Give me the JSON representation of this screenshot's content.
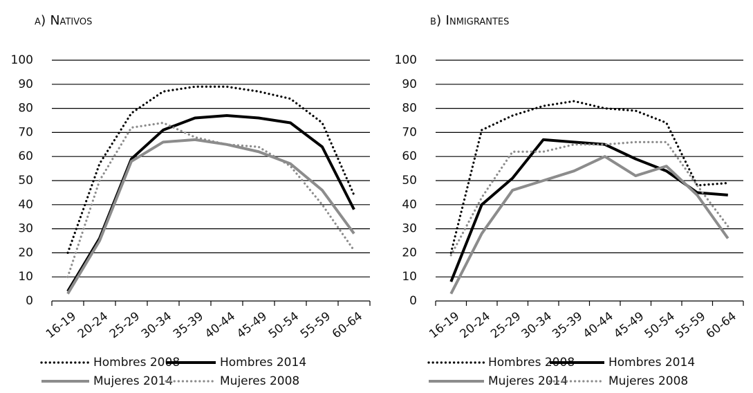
{
  "chart_data": [
    {
      "type": "line",
      "title": "a) Nativos",
      "categories": [
        "16-19",
        "20-24",
        "25-29",
        "30-34",
        "35-39",
        "40-44",
        "45-49",
        "50-54",
        "55-59",
        "60-64"
      ],
      "series": [
        {
          "name": "Hombres 2008",
          "color": "#000000",
          "dash": "dotted",
          "values": [
            20,
            57,
            78,
            87,
            89,
            89,
            87,
            84,
            74,
            44
          ]
        },
        {
          "name": "Hombres 2014",
          "color": "#000000",
          "dash": "solid",
          "values": [
            4,
            26,
            59,
            71,
            76,
            77,
            76,
            74,
            64,
            38
          ]
        },
        {
          "name": "Mujeres 2014",
          "color": "#8c8c8c",
          "dash": "solid",
          "values": [
            3,
            25,
            58,
            66,
            67,
            65,
            62,
            57,
            46,
            28
          ]
        },
        {
          "name": "Mujeres 2008",
          "color": "#8c8c8c",
          "dash": "dotted",
          "values": [
            10,
            50,
            72,
            74,
            68,
            65,
            64,
            56,
            40,
            21
          ]
        }
      ],
      "ylim": [
        0,
        100
      ],
      "yticks": [
        0,
        10,
        20,
        30,
        40,
        50,
        60,
        70,
        80,
        90,
        100
      ],
      "grid": true
    },
    {
      "type": "line",
      "title": "b) Inmigrantes",
      "categories": [
        "16-19",
        "20-24",
        "25-29",
        "30-34",
        "35-39",
        "40-44",
        "45-49",
        "50-54",
        "55-59",
        "60-64"
      ],
      "series": [
        {
          "name": "Hombres 2008",
          "color": "#000000",
          "dash": "dotted",
          "values": [
            20,
            71,
            77,
            81,
            83,
            80,
            79,
            74,
            48,
            49
          ]
        },
        {
          "name": "Hombres 2014",
          "color": "#000000",
          "dash": "solid",
          "values": [
            8,
            40,
            51,
            67,
            66,
            65,
            59,
            54,
            45,
            44
          ]
        },
        {
          "name": "Mujeres 2014",
          "color": "#8c8c8c",
          "dash": "solid",
          "values": [
            3,
            28,
            46,
            50,
            54,
            60,
            52,
            56,
            44,
            26
          ]
        },
        {
          "name": "Mujeres 2008",
          "color": "#8c8c8c",
          "dash": "dotted",
          "values": [
            19,
            43,
            62,
            62,
            65,
            65,
            66,
            66,
            48,
            31
          ]
        }
      ],
      "ylim": [
        0,
        100
      ],
      "yticks": [
        0,
        10,
        20,
        30,
        40,
        50,
        60,
        70,
        80,
        90,
        100
      ],
      "grid": true
    }
  ]
}
